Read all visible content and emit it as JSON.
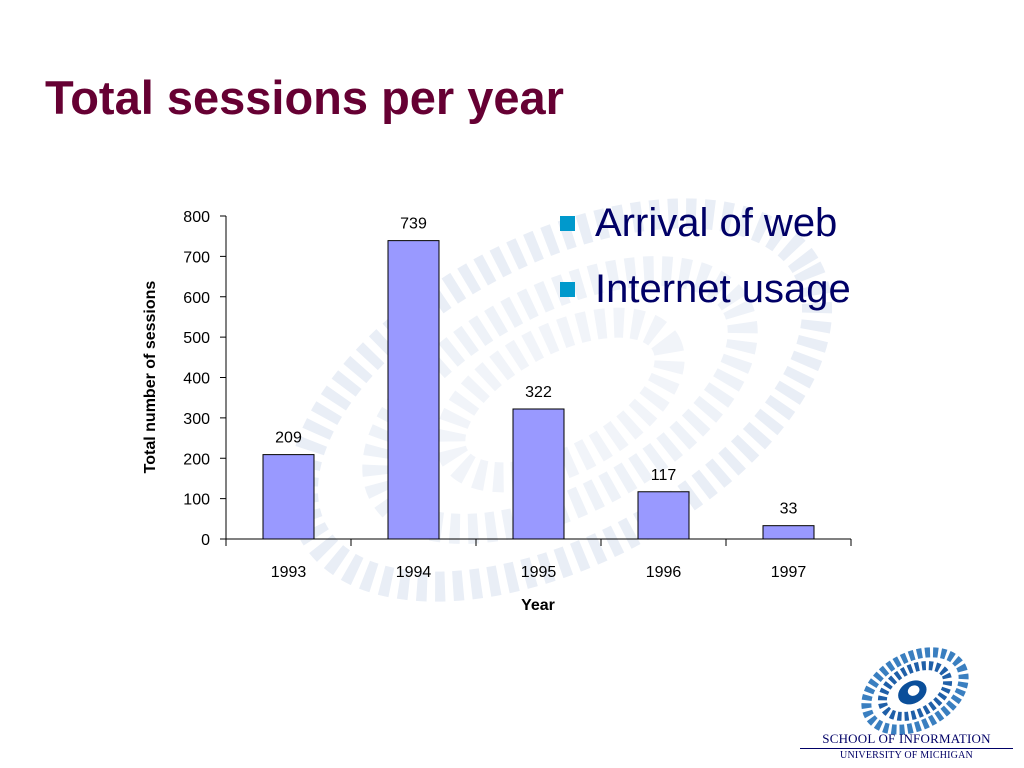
{
  "slide": {
    "title": "Total sessions per year",
    "bullets": [
      "Arrival of web",
      "Internet usage"
    ],
    "logo": {
      "line1": "SCHOOL OF INFORMATION",
      "line2": "UNIVERSITY OF MICHIGAN"
    }
  },
  "colors": {
    "title": "#660033",
    "bullet_text": "#000066",
    "bullet_marker": "#0099cc",
    "bar_fill": "#9999ff",
    "bar_stroke": "#000000"
  },
  "chart_data": {
    "type": "bar",
    "categories": [
      "1993",
      "1994",
      "1995",
      "1996",
      "1997"
    ],
    "values": [
      209,
      739,
      322,
      117,
      33
    ],
    "data_labels": [
      "209",
      "739",
      "322",
      "117",
      "33"
    ],
    "xlabel": "Year",
    "ylabel": "Total number of sessions",
    "ylim": [
      0,
      800
    ],
    "yticks": [
      0,
      100,
      200,
      300,
      400,
      500,
      600,
      700,
      800
    ],
    "grid": false,
    "legend": "none"
  }
}
